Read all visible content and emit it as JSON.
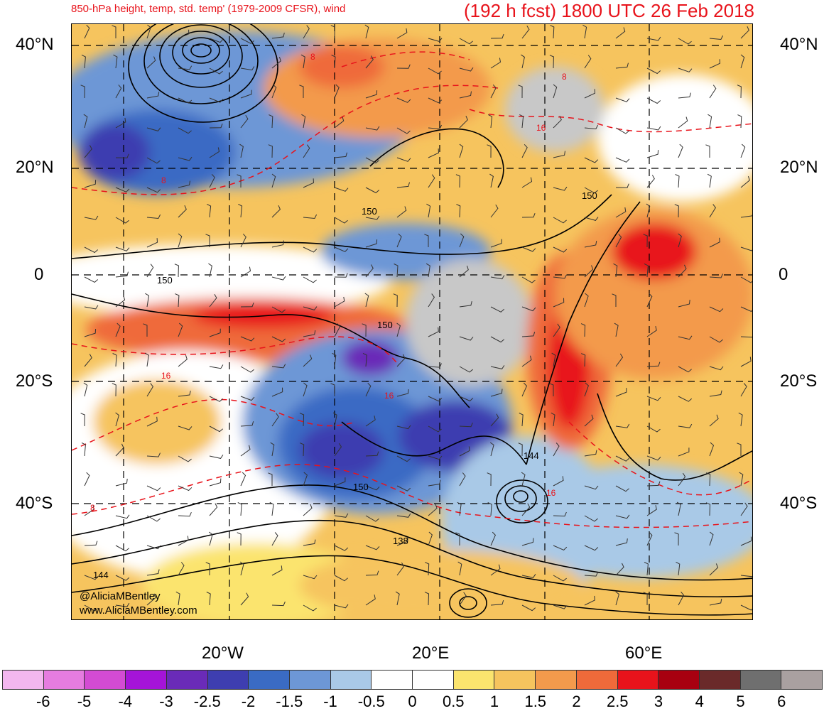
{
  "title": {
    "left": "850-hPa height, temp, std. temp' (1979-2009 CFSR), wind",
    "right": "(192 h fcst) 1800 UTC 26 Feb 2018"
  },
  "lat_labels": [
    "40°N",
    "20°N",
    "0",
    "20°S",
    "40°S"
  ],
  "lon_labels": [
    "20°W",
    "20°E",
    "60°E"
  ],
  "credits": [
    "@AliciaMBentley",
    "www.AliciaMBentley.com"
  ],
  "contour_labels": [
    "150",
    "150",
    "150",
    "150",
    "150",
    "144",
    "138",
    "144"
  ],
  "temp_labels": [
    "8",
    "8",
    "8",
    "16",
    "16",
    "16",
    "8",
    "16"
  ],
  "colorbar": {
    "colors": [
      "#f3b7ef",
      "#e67ce0",
      "#d34bd3",
      "#a514d8",
      "#6a2bb8",
      "#3e3eb0",
      "#3a6bc4",
      "#6d97d6",
      "#a9c9e7",
      "#ffffff",
      "#ffffff",
      "#fbe46e",
      "#f6c45e",
      "#f39a4c",
      "#ef6a3a",
      "#e8131b",
      "#a80010",
      "#6a2a2a",
      "#6f6f6f",
      "#a9a0a0"
    ],
    "labels": [
      "-6",
      "-5",
      "-4",
      "-3",
      "-2.5",
      "-2",
      "-1.5",
      "-1",
      "-0.5",
      "0",
      "0.5",
      "1",
      "1.5",
      "2",
      "2.5",
      "3",
      "4",
      "5",
      "6"
    ]
  }
}
